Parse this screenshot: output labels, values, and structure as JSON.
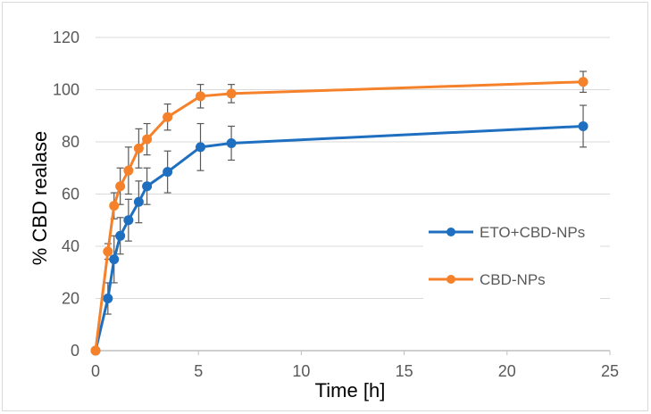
{
  "chart_data": {
    "type": "line",
    "title": "",
    "xlabel": "Time [h]",
    "ylabel": "% CBD realase",
    "xlim": [
      0,
      25
    ],
    "ylim": [
      0,
      120
    ],
    "xticks": [
      0,
      5,
      10,
      15,
      20,
      25
    ],
    "yticks": [
      0,
      20,
      40,
      60,
      80,
      100,
      120
    ],
    "xtick_labels": [
      "0",
      "5",
      "10",
      "15",
      "20",
      "25"
    ],
    "ytick_labels": [
      "0",
      "20",
      "40",
      "60",
      "80",
      "100",
      "120"
    ],
    "grid": "horizontal",
    "legend_position": "right",
    "series": [
      {
        "name": "ETO+CBD-NPs",
        "color": "#1f6fc1",
        "x": [
          0,
          0.6,
          0.9,
          1.2,
          1.6,
          2.1,
          2.5,
          3.5,
          5.1,
          6.6,
          23.7
        ],
        "y": [
          0,
          20,
          35,
          44,
          50,
          57,
          63,
          68.5,
          78,
          79.5,
          86
        ],
        "err": [
          0,
          6,
          9,
          7,
          8,
          8,
          7,
          8,
          9,
          6.5,
          8
        ]
      },
      {
        "name": "CBD-NPs",
        "color": "#f5822a",
        "x": [
          0,
          0.6,
          0.9,
          1.2,
          1.6,
          2.1,
          2.5,
          3.5,
          5.1,
          6.6,
          23.7
        ],
        "y": [
          0,
          38,
          55.5,
          63,
          69,
          77.5,
          81,
          89.5,
          97.5,
          98.5,
          103
        ],
        "err": [
          0,
          3,
          5,
          7,
          9,
          7.5,
          6,
          5,
          4.5,
          3.5,
          4
        ]
      }
    ]
  }
}
